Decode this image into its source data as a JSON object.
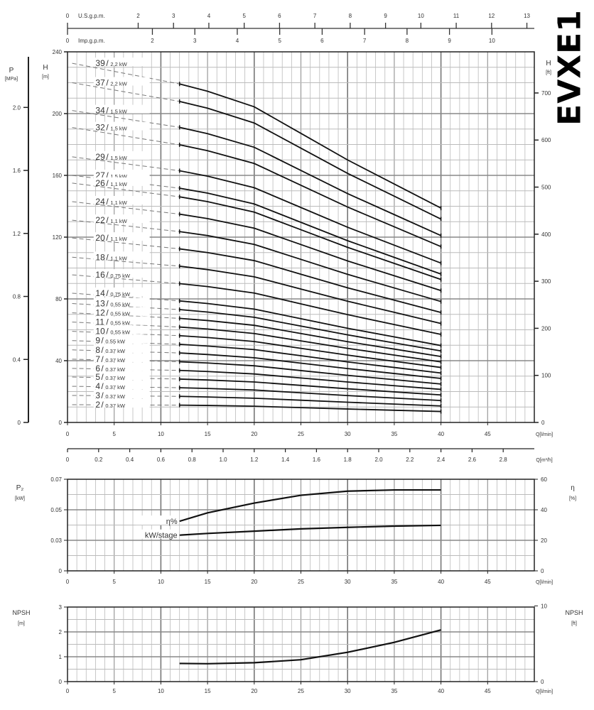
{
  "title": "EVXE1",
  "chart_data": [
    {
      "type": "line",
      "id": "head",
      "x_unit_label": "Q[l/min]",
      "xlim": [
        0,
        50
      ],
      "x_ticks": [
        0,
        5,
        10,
        15,
        20,
        25,
        30,
        35,
        40,
        45
      ],
      "ylim": [
        0,
        240
      ],
      "y_ticks": [
        0,
        40,
        80,
        120,
        160,
        200,
        240
      ],
      "ylabel": "H",
      "ylabel_unit": "[m]",
      "left_pressure_axis": {
        "label": "P",
        "unit": "[MPa]",
        "ticks": [
          0,
          0.4,
          0.8,
          1.2,
          1.6,
          2.0
        ],
        "tick_labels": [
          "0",
          "0.4",
          "0.8",
          "1.2",
          "1.6",
          "2.0"
        ]
      },
      "right_feet_axis": {
        "label": "H",
        "unit": "[ft]",
        "ticks": [
          0,
          100,
          200,
          300,
          400,
          500,
          600,
          700
        ]
      },
      "top_axes": [
        {
          "label": "U.S.g.p.m.",
          "ticks": [
            0,
            2,
            3,
            4,
            5,
            6,
            7,
            8,
            9,
            10,
            11,
            12,
            13
          ]
        },
        {
          "label": "Imp.g.p.m.",
          "ticks": [
            0,
            2,
            3,
            4,
            5,
            6,
            7,
            8,
            9,
            10
          ]
        }
      ],
      "m3h_axis": {
        "unit_label": "Q[m³/h]",
        "ticks": [
          "0",
          "0.2",
          "0.4",
          "0.6",
          "0.8",
          "1.0",
          "1.2",
          "1.4",
          "1.6",
          "1.8",
          "2.0",
          "2.2",
          "2.4",
          "2.6",
          "2.8"
        ]
      },
      "grid": true,
      "x": [
        12,
        15,
        20,
        25,
        30,
        35,
        40
      ],
      "series": [
        {
          "stages": "39",
          "power": "2.2 kW",
          "values": [
            219.2,
            214.5,
            204.4,
            187.2,
            170.0,
            154.4,
            138.8
          ]
        },
        {
          "stages": "37",
          "power": "2.2 kW",
          "values": [
            207.9,
            203.5,
            193.9,
            177.6,
            161.3,
            146.5,
            131.7
          ]
        },
        {
          "stages": "34",
          "power": "1.5 kW",
          "values": [
            191.1,
            187.0,
            178.2,
            163.2,
            148.2,
            134.6,
            121.0
          ]
        },
        {
          "stages": "32",
          "power": "1.5 kW",
          "values": [
            179.8,
            176.0,
            167.7,
            153.6,
            139.5,
            126.7,
            113.9
          ]
        },
        {
          "stages": "29",
          "power": "1.5 kW",
          "values": [
            163.0,
            159.5,
            152.0,
            139.2,
            126.4,
            114.8,
            103.2
          ]
        },
        {
          "stages": "27",
          "power": "1.5 kW",
          "values": [
            151.7,
            148.5,
            141.5,
            129.6,
            117.7,
            106.9,
            96.1
          ]
        },
        {
          "stages": "26",
          "power": "1.1 kW",
          "values": [
            146.1,
            143.0,
            136.2,
            124.8,
            113.4,
            103.0,
            92.6
          ]
        },
        {
          "stages": "24",
          "power": "1.1 kW",
          "values": [
            134.9,
            132.0,
            125.8,
            115.2,
            104.6,
            95.0,
            85.4
          ]
        },
        {
          "stages": "22",
          "power": "1.1 kW",
          "values": [
            123.6,
            121.0,
            115.3,
            105.6,
            95.9,
            87.1,
            78.3
          ]
        },
        {
          "stages": "20",
          "power": "1.1 kW",
          "values": [
            112.4,
            110.0,
            104.8,
            96.0,
            87.2,
            79.2,
            71.2
          ]
        },
        {
          "stages": "18",
          "power": "1.1 kW",
          "values": [
            101.2,
            99.0,
            94.3,
            86.4,
            78.5,
            71.3,
            64.1
          ]
        },
        {
          "stages": "16",
          "power": "0.75 kW",
          "values": [
            89.9,
            88.0,
            83.8,
            76.8,
            69.8,
            63.4,
            57.0
          ]
        },
        {
          "stages": "14",
          "power": "0.75 kW",
          "values": [
            78.7,
            77.0,
            73.4,
            67.2,
            61.0,
            55.4,
            49.8
          ]
        },
        {
          "stages": "13",
          "power": "0.55 kW",
          "values": [
            73.1,
            71.5,
            68.1,
            62.4,
            56.7,
            51.5,
            46.3
          ]
        },
        {
          "stages": "12",
          "power": "0.55 kW",
          "values": [
            67.4,
            66.0,
            62.9,
            57.6,
            52.3,
            47.5,
            42.7
          ]
        },
        {
          "stages": "11",
          "power": "0.55 kW",
          "values": [
            61.8,
            60.5,
            57.6,
            52.8,
            48.0,
            43.6,
            39.2
          ]
        },
        {
          "stages": "10",
          "power": "0.55 kW",
          "values": [
            56.2,
            55.0,
            52.4,
            48.0,
            43.6,
            39.6,
            35.6
          ]
        },
        {
          "stages": "9",
          "power": "0.55 kW",
          "values": [
            50.6,
            49.5,
            47.2,
            43.2,
            39.2,
            35.6,
            32.0
          ]
        },
        {
          "stages": "8",
          "power": "0.37 kW",
          "values": [
            45.0,
            44.0,
            41.9,
            38.4,
            34.9,
            31.7,
            28.5
          ]
        },
        {
          "stages": "7",
          "power": "0.37 kW",
          "values": [
            39.3,
            38.5,
            36.7,
            33.6,
            30.5,
            27.7,
            24.9
          ]
        },
        {
          "stages": "6",
          "power": "0.37 kW",
          "values": [
            33.7,
            33.0,
            31.4,
            28.8,
            26.2,
            23.8,
            21.4
          ]
        },
        {
          "stages": "5",
          "power": "0.37 kW",
          "values": [
            28.1,
            27.5,
            26.2,
            24.0,
            21.8,
            19.8,
            17.8
          ]
        },
        {
          "stages": "4",
          "power": "0.37 kW",
          "values": [
            22.5,
            22.0,
            21.0,
            19.2,
            17.4,
            15.8,
            14.2
          ]
        },
        {
          "stages": "3",
          "power": "0.37 kW",
          "values": [
            16.9,
            16.5,
            15.7,
            14.4,
            13.1,
            11.9,
            10.7
          ]
        },
        {
          "stages": "2",
          "power": "0.37 kW",
          "values": [
            11.2,
            11.0,
            10.5,
            9.6,
            8.7,
            7.9,
            7.1
          ]
        }
      ]
    },
    {
      "type": "line",
      "id": "efficiency",
      "x_unit_label": "Q[l/min]",
      "xlim": [
        0,
        50
      ],
      "x_ticks": [
        0,
        5,
        10,
        15,
        20,
        25,
        30,
        35,
        40,
        45
      ],
      "left_axis": {
        "label": "P₂",
        "unit": "[kW]",
        "tick_labels": [
          "0",
          "0.03",
          "0.05",
          "0.07"
        ]
      },
      "right_axis": {
        "label": "η",
        "unit": "[%]",
        "ylim": [
          0,
          60
        ],
        "ticks": [
          0,
          20,
          40,
          60
        ]
      },
      "grid": true,
      "x": [
        12,
        15,
        20,
        25,
        30,
        35,
        40
      ],
      "series": [
        {
          "name": "η%",
          "axis": "right",
          "values": [
            32.5,
            38,
            44.4,
            49.5,
            52.2,
            53,
            53
          ]
        },
        {
          "name": "kW/stage",
          "axis": "left",
          "values": [
            0.0334,
            0.0345,
            0.036,
            0.0375,
            0.0385,
            0.0393,
            0.0398
          ]
        }
      ]
    },
    {
      "type": "line",
      "id": "npsh",
      "x_unit_label": "Q[l/min]",
      "xlim": [
        0,
        50
      ],
      "x_ticks": [
        0,
        5,
        10,
        15,
        20,
        25,
        30,
        35,
        40,
        45
      ],
      "left_axis": {
        "label": "NPSH",
        "unit": "[m]",
        "ylim": [
          0,
          3
        ],
        "ticks": [
          0,
          1,
          2,
          3
        ]
      },
      "right_axis": {
        "label": "NPSH",
        "unit": "[ft]",
        "ticks": [
          0,
          10
        ]
      },
      "grid": true,
      "x": [
        12,
        15,
        20,
        25,
        30,
        35,
        40
      ],
      "series": [
        {
          "values": [
            0.73,
            0.72,
            0.76,
            0.88,
            1.18,
            1.58,
            2.08
          ]
        }
      ]
    }
  ]
}
